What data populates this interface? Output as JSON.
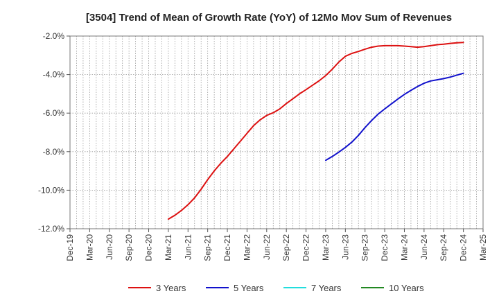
{
  "chart_data": {
    "type": "line",
    "title": "[3504]  Trend of Mean of Growth Rate (YoY) of 12Mo Mov Sum of Revenues",
    "xlabel": "",
    "ylabel": "",
    "ylim": [
      -12.0,
      -2.0
    ],
    "y_ticks": [
      -2.0,
      -4.0,
      -6.0,
      -8.0,
      -10.0,
      -12.0
    ],
    "y_tick_labels": [
      "-2.0%",
      "-4.0%",
      "-6.0%",
      "-8.0%",
      "-10.0%",
      "-12.0%"
    ],
    "x_tick_labels": [
      "Dec-19",
      "Mar-20",
      "Jun-20",
      "Sep-20",
      "Dec-20",
      "Mar-21",
      "Jun-21",
      "Sep-21",
      "Dec-21",
      "Mar-22",
      "Jun-22",
      "Sep-22",
      "Dec-22",
      "Mar-23",
      "Jun-23",
      "Sep-23",
      "Dec-23",
      "Mar-24",
      "Jun-24",
      "Sep-24",
      "Dec-24",
      "Mar-25"
    ],
    "x_range_months": [
      0,
      63
    ],
    "grid": true,
    "legend_position": "bottom",
    "series": [
      {
        "name": "3 Years",
        "color": "#dd1111",
        "x": [
          15,
          16,
          17,
          18,
          19,
          20,
          21,
          22,
          23,
          24,
          25,
          26,
          27,
          28,
          29,
          30,
          31,
          32,
          33,
          34,
          35,
          36,
          37,
          38,
          39,
          40,
          41,
          42,
          43,
          44,
          45,
          46,
          47,
          48,
          49,
          50,
          51,
          52,
          53,
          54,
          55,
          56,
          57,
          58,
          59,
          60
        ],
        "values": [
          -11.5,
          -11.3,
          -11.05,
          -10.75,
          -10.4,
          -9.95,
          -9.45,
          -9.0,
          -8.6,
          -8.25,
          -7.85,
          -7.45,
          -7.05,
          -6.65,
          -6.35,
          -6.12,
          -5.98,
          -5.78,
          -5.5,
          -5.25,
          -5.0,
          -4.78,
          -4.55,
          -4.32,
          -4.05,
          -3.72,
          -3.35,
          -3.05,
          -2.9,
          -2.8,
          -2.68,
          -2.58,
          -2.52,
          -2.5,
          -2.5,
          -2.5,
          -2.52,
          -2.55,
          -2.58,
          -2.55,
          -2.5,
          -2.45,
          -2.42,
          -2.38,
          -2.35,
          -2.33
        ]
      },
      {
        "name": "5 Years",
        "color": "#1111cc",
        "x": [
          39,
          40,
          41,
          42,
          43,
          44,
          45,
          46,
          47,
          48,
          49,
          50,
          51,
          52,
          53,
          54,
          55,
          56,
          57,
          58,
          59,
          60
        ],
        "values": [
          -8.45,
          -8.25,
          -8.02,
          -7.78,
          -7.5,
          -7.15,
          -6.75,
          -6.38,
          -6.05,
          -5.78,
          -5.52,
          -5.27,
          -5.03,
          -4.82,
          -4.62,
          -4.45,
          -4.33,
          -4.27,
          -4.21,
          -4.13,
          -4.03,
          -3.93
        ]
      },
      {
        "name": "7 Years",
        "color": "#22dddd",
        "x": [],
        "values": []
      },
      {
        "name": "10 Years",
        "color": "#228822",
        "x": [],
        "values": []
      }
    ]
  }
}
